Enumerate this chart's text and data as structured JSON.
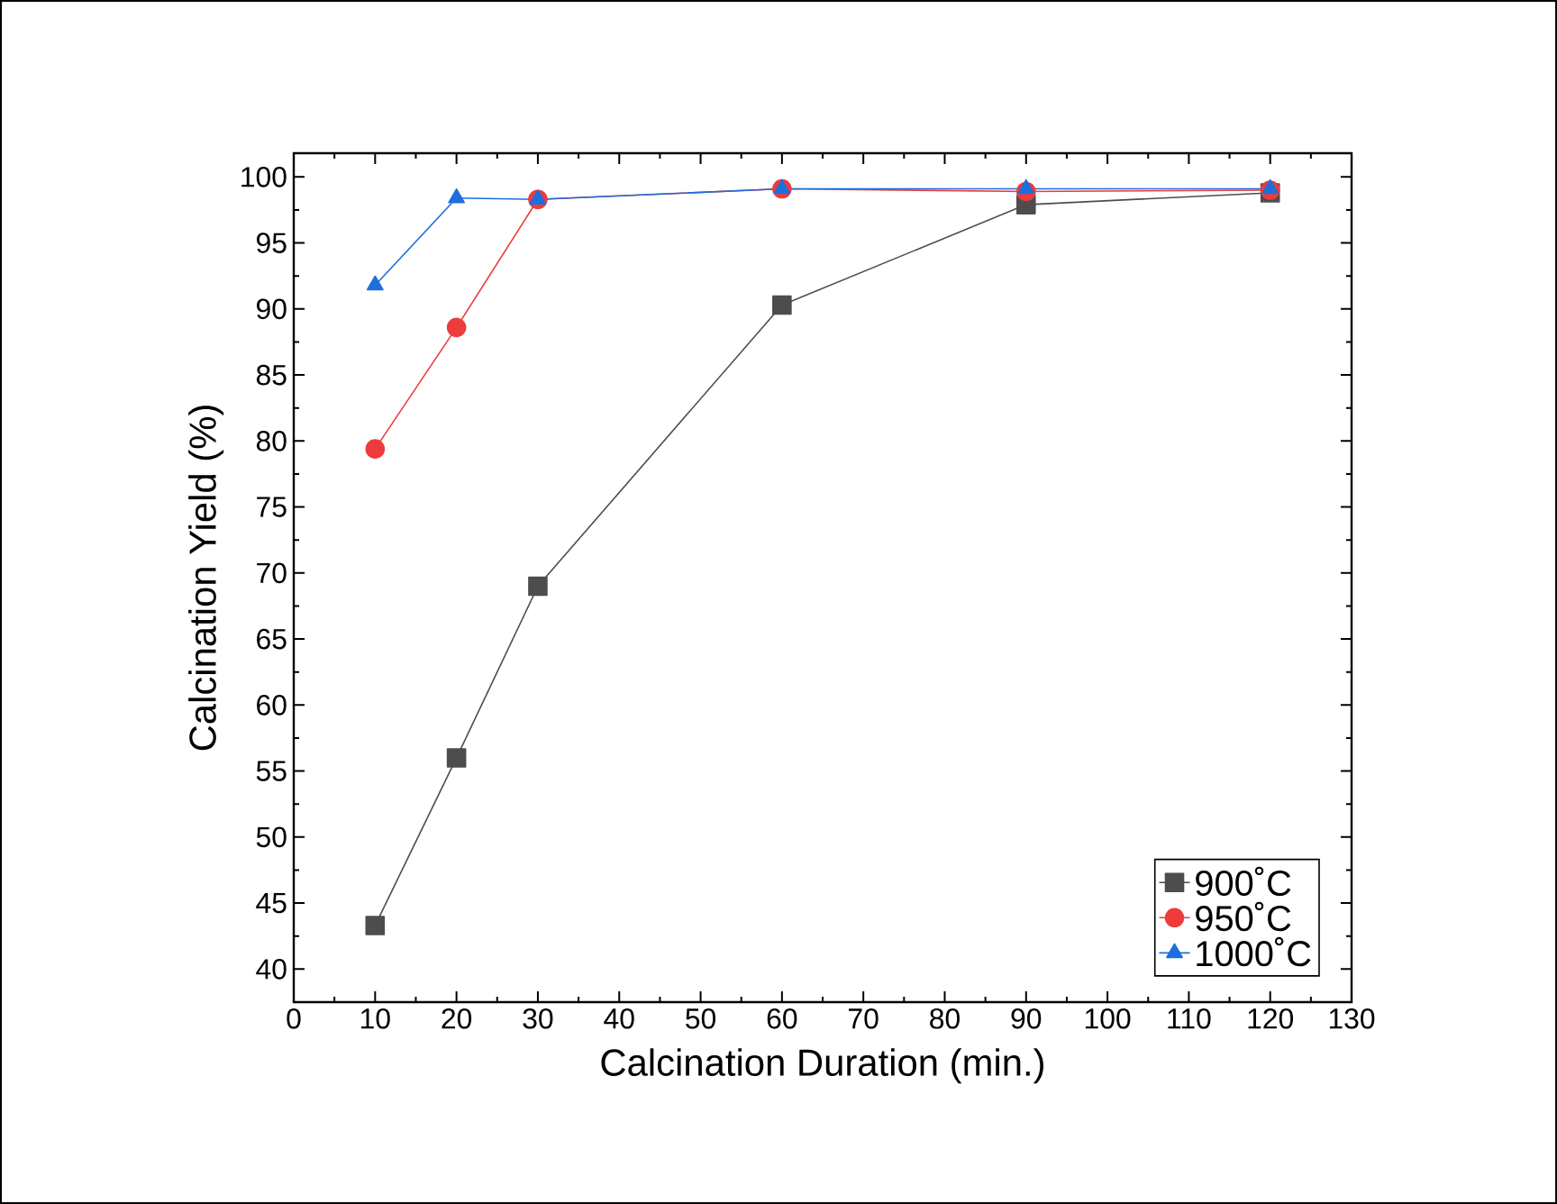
{
  "chart_data": {
    "type": "line",
    "xlabel": "Calcination Duration (min.)",
    "ylabel": "Calcination Yield (%)",
    "x": [
      10,
      20,
      30,
      60,
      90,
      120
    ],
    "series": [
      {
        "name": "900˚C",
        "color": "#4d4d4d",
        "marker": "square",
        "values": [
          43.3,
          56.0,
          69.0,
          90.3,
          97.9,
          98.8
        ]
      },
      {
        "name": "950˚C",
        "color": "#ee3b3b",
        "marker": "circle",
        "values": [
          79.4,
          88.6,
          98.3,
          99.1,
          98.9,
          99.0
        ]
      },
      {
        "name": "1000˚C",
        "color": "#1e6fdc",
        "marker": "triangle",
        "values": [
          91.8,
          98.4,
          98.3,
          99.1,
          99.1,
          99.1
        ]
      }
    ],
    "xlim": [
      0,
      130
    ],
    "ylim": [
      37.5,
      101.8
    ],
    "xticks": [
      0,
      10,
      20,
      30,
      40,
      50,
      60,
      70,
      80,
      90,
      100,
      110,
      120,
      130
    ],
    "yticks": [
      40,
      45,
      50,
      55,
      60,
      65,
      70,
      75,
      80,
      85,
      90,
      95,
      100
    ],
    "grid": false,
    "legend": "bottom right",
    "line_style": "solid"
  }
}
